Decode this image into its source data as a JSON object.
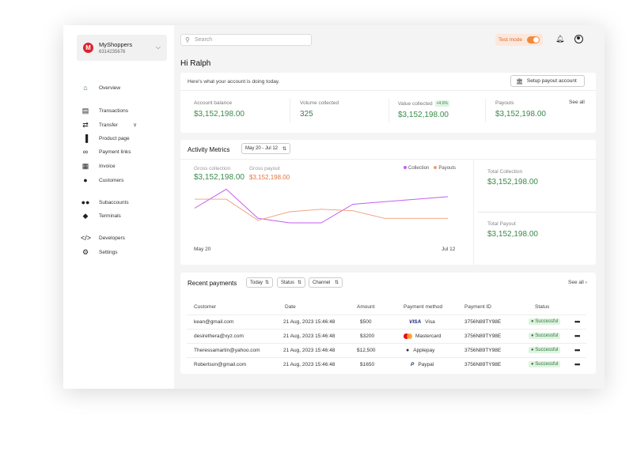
{
  "org": {
    "name": "MyShoppers",
    "account_id": "6314235676",
    "logo_letter": "M"
  },
  "sidebar": {
    "items": [
      {
        "label": "Overview",
        "icon": "home-icon"
      },
      {
        "label": "Transactions",
        "icon": "document-icon"
      },
      {
        "label": "Transfer",
        "icon": "transfer-icon"
      },
      {
        "label": "Product page",
        "icon": "product-icon"
      },
      {
        "label": "Payment links",
        "icon": "link-icon"
      },
      {
        "label": "Invoice",
        "icon": "invoice-icon"
      },
      {
        "label": "Customers",
        "icon": "person-icon"
      },
      {
        "label": "Subaccounts",
        "icon": "people-icon"
      },
      {
        "label": "Terminals",
        "icon": "layers-icon"
      },
      {
        "label": "Developers",
        "icon": "code-icon"
      },
      {
        "label": "Settings",
        "icon": "gear-icon"
      }
    ]
  },
  "header": {
    "search_placeholder": "Search",
    "test_mode_label": "Test mode",
    "test_mode_on": true
  },
  "greeting": "Hi Ralph",
  "summary": {
    "subtitle": "Here's what your account is doing today.",
    "setup_button": "Setup payout account",
    "see_all": "See all",
    "stats": [
      {
        "label": "Account balance",
        "value": "$3,152,198.00"
      },
      {
        "label": "Volume collected",
        "value": "325"
      },
      {
        "label": "Value collected",
        "value": "$3,152,198.00",
        "badge": "+4.6%"
      },
      {
        "label": "Payouts",
        "value": "$3,152,198.00"
      }
    ]
  },
  "activity": {
    "title": "Activity Metrics",
    "date_range": "May 20 - Jul 12",
    "gross_collection_label": "Gross collection",
    "gross_collection_value": "$3,152,198.00",
    "gross_payout_label": "Gross payout",
    "gross_payout_value": "$3,152,198.00",
    "legend_collection": "Collection",
    "legend_payouts": "Payouts",
    "x_start": "May 20",
    "x_end": "Jul 12",
    "total_collection_label": "Total Collection",
    "total_collection_value": "$3,152,198.00",
    "total_payout_label": "Total Payout",
    "total_payout_value": "$3,152,198.00"
  },
  "chart_data": {
    "type": "line",
    "x": [
      "May 20",
      "",
      "",
      "",
      "",
      "",
      "",
      "",
      "Jul 12"
    ],
    "series": [
      {
        "name": "Collection",
        "color": "#c65df0",
        "values": [
          62,
          100,
          42,
          33,
          33,
          70,
          75,
          80,
          85
        ]
      },
      {
        "name": "Payouts",
        "color": "#ef9b76",
        "values": [
          80,
          80,
          38,
          55,
          60,
          57,
          42,
          42,
          42
        ]
      }
    ],
    "ylim": [
      0,
      110
    ],
    "grid": false
  },
  "payments": {
    "title": "Recent payments",
    "filters": [
      "Today",
      "Status",
      "Channel"
    ],
    "see_all": "See all",
    "columns": [
      "Customer",
      "Date",
      "Amount",
      "Payment method",
      "Payment ID",
      "Status"
    ],
    "rows": [
      {
        "customer": "kean@gmail.com",
        "date": "21 Aug, 2023 15:46:48",
        "amount": "$500",
        "method": "Visa",
        "method_icon": "visa-logo",
        "method_mark": "VISA",
        "id": "3756N89TY98E",
        "status": "Successful"
      },
      {
        "customer": "desirethera@xyz.com",
        "date": "21 Aug, 2023 15:46:48",
        "amount": "$3200",
        "method": "Mastercard",
        "method_icon": "mastercard-logo",
        "method_mark": "",
        "id": "3756N89TY98E",
        "status": "Successful"
      },
      {
        "customer": "Theressamartin@yahoo.com",
        "date": "21 Aug, 2023 15:46:48",
        "amount": "$12,500",
        "method": "Applepay",
        "method_icon": "apple-icon",
        "method_mark": "",
        "id": "3756N89TY98E",
        "status": "Successful"
      },
      {
        "customer": "Robertson@gmail.com",
        "date": "21 Aug, 2023 15:46:48",
        "amount": "$1650",
        "method": "Paypal",
        "method_icon": "paypal-icon",
        "method_mark": "P",
        "id": "3756N89TY98E",
        "status": "Successful"
      }
    ]
  }
}
